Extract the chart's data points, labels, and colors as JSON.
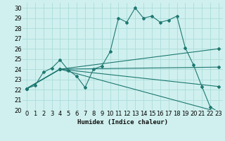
{
  "xlabel": "Humidex (Indice chaleur)",
  "xlim": [
    -0.5,
    23.5
  ],
  "ylim": [
    20,
    30.5
  ],
  "yticks": [
    20,
    21,
    22,
    23,
    24,
    25,
    26,
    27,
    28,
    29,
    30
  ],
  "xticks": [
    0,
    1,
    2,
    3,
    4,
    5,
    6,
    7,
    8,
    9,
    10,
    11,
    12,
    13,
    14,
    15,
    16,
    17,
    18,
    19,
    20,
    21,
    22,
    23
  ],
  "bg_color": "#cff0ee",
  "grid_color": "#aadcda",
  "line_color": "#1f7872",
  "main_x": [
    0,
    1,
    2,
    3,
    4,
    5,
    6,
    7,
    8,
    9,
    10,
    11,
    12,
    13,
    14,
    15,
    16,
    17,
    18,
    19,
    20,
    21,
    22,
    23
  ],
  "main_y": [
    22.1,
    22.4,
    23.7,
    24.1,
    24.9,
    23.9,
    23.3,
    22.2,
    24.0,
    24.3,
    25.7,
    29.0,
    28.6,
    30.0,
    29.0,
    29.2,
    28.6,
    28.8,
    29.2,
    26.1,
    24.4,
    22.3,
    20.3,
    19.8
  ],
  "fan_lines": [
    {
      "x": [
        0,
        4,
        23
      ],
      "y": [
        22.1,
        24.0,
        26.0
      ]
    },
    {
      "x": [
        0,
        4,
        23
      ],
      "y": [
        22.1,
        24.0,
        24.2
      ]
    },
    {
      "x": [
        0,
        4,
        23
      ],
      "y": [
        22.1,
        24.0,
        22.3
      ]
    },
    {
      "x": [
        0,
        4,
        23
      ],
      "y": [
        22.1,
        24.0,
        19.8
      ]
    }
  ],
  "tick_fontsize": 6,
  "xlabel_fontsize": 6.5
}
